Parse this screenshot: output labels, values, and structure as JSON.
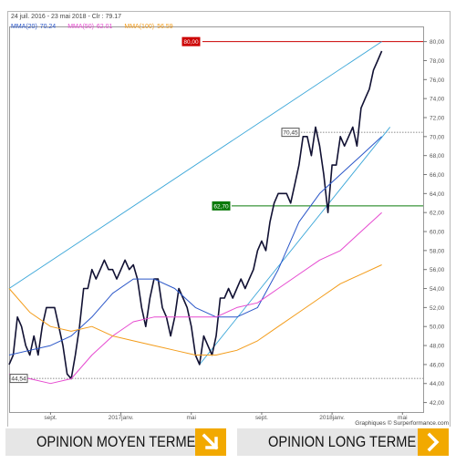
{
  "header": {
    "date_line": "24 juil. 2016 - 23 mai 2018 - Clr : 79.17",
    "mma": [
      {
        "label": "MMA(20)",
        "value": "70.24",
        "color": "#2a56c8"
      },
      {
        "label": "MMA(50)",
        "value": "62.01",
        "color": "#e64ad0"
      },
      {
        "label": "MMA(100)",
        "value": "56.59",
        "color": "#f39c1a"
      }
    ]
  },
  "credit": "Graphiques © Surperformance.com",
  "chart_data": {
    "type": "line",
    "ylim": [
      41,
      81.5
    ],
    "y_ticks": [
      "42,00",
      "44,00",
      "46,00",
      "48,00",
      "50,00",
      "52,00",
      "54,00",
      "56,00",
      "58,00",
      "60,00",
      "62,00",
      "64,00",
      "66,00",
      "68,00",
      "70,00",
      "72,00",
      "74,00",
      "76,00",
      "78,00",
      "80,00"
    ],
    "x_tick_labels": [
      "sept.",
      "2017janv.",
      "mai",
      "sept.",
      "2018janv.",
      "mai"
    ],
    "x_tick_positions": [
      10,
      27,
      44,
      61,
      78,
      95
    ],
    "level_labels": [
      {
        "text": "80,00",
        "value": 80.0,
        "color": "#cc0000"
      },
      {
        "text": "70,45",
        "value": 70.45,
        "color": "#555555"
      },
      {
        "text": "62,70",
        "value": 62.7,
        "color": "#0a7a0a"
      },
      {
        "text": "44,54",
        "value": 44.54,
        "color": "#555555"
      }
    ],
    "series": [
      {
        "color": "#111133",
        "points": [
          [
            0,
            46
          ],
          [
            1,
            47
          ],
          [
            2,
            51
          ],
          [
            3,
            50
          ],
          [
            4,
            48
          ],
          [
            5,
            47
          ],
          [
            6,
            49
          ],
          [
            7,
            47
          ],
          [
            8,
            50
          ],
          [
            9,
            52
          ],
          [
            10,
            52
          ],
          [
            11,
            52
          ],
          [
            12,
            50
          ],
          [
            13,
            48
          ],
          [
            14,
            45
          ],
          [
            15,
            44.5
          ],
          [
            16,
            47
          ],
          [
            17,
            50
          ],
          [
            18,
            54
          ],
          [
            19,
            54
          ],
          [
            20,
            56
          ],
          [
            21,
            55
          ],
          [
            22,
            56
          ],
          [
            23,
            57
          ],
          [
            24,
            56
          ],
          [
            25,
            56
          ],
          [
            26,
            55
          ],
          [
            27,
            56
          ],
          [
            28,
            57
          ],
          [
            29,
            56
          ],
          [
            30,
            56.5
          ],
          [
            31,
            55
          ],
          [
            32,
            52
          ],
          [
            33,
            50
          ],
          [
            34,
            53
          ],
          [
            35,
            55
          ],
          [
            36,
            55
          ],
          [
            37,
            52
          ],
          [
            38,
            51
          ],
          [
            39,
            49
          ],
          [
            40,
            51
          ],
          [
            41,
            54
          ],
          [
            42,
            53
          ],
          [
            43,
            52
          ],
          [
            44,
            50
          ],
          [
            45,
            47
          ],
          [
            46,
            46
          ],
          [
            47,
            49
          ],
          [
            48,
            48
          ],
          [
            49,
            47
          ],
          [
            50,
            49
          ],
          [
            51,
            53
          ],
          [
            52,
            53
          ],
          [
            53,
            54
          ],
          [
            54,
            53
          ],
          [
            55,
            54
          ],
          [
            56,
            55
          ],
          [
            57,
            54
          ],
          [
            58,
            55
          ],
          [
            59,
            56
          ],
          [
            60,
            58
          ],
          [
            61,
            59
          ],
          [
            62,
            58
          ],
          [
            63,
            61
          ],
          [
            64,
            63
          ],
          [
            65,
            64
          ],
          [
            66,
            64
          ],
          [
            67,
            64
          ],
          [
            68,
            63
          ],
          [
            69,
            65
          ],
          [
            70,
            67
          ],
          [
            71,
            70
          ],
          [
            72,
            70
          ],
          [
            73,
            68
          ],
          [
            74,
            71
          ],
          [
            75,
            69
          ],
          [
            76,
            66
          ],
          [
            77,
            62
          ],
          [
            78,
            67
          ],
          [
            79,
            67
          ],
          [
            80,
            70
          ],
          [
            81,
            69
          ],
          [
            82,
            70
          ],
          [
            83,
            71
          ],
          [
            84,
            69
          ],
          [
            85,
            73
          ],
          [
            86,
            74
          ],
          [
            87,
            75
          ],
          [
            88,
            77
          ],
          [
            89,
            78
          ],
          [
            90,
            79
          ]
        ]
      },
      {
        "name": "MMA(20)",
        "color": "#2a56c8",
        "points": [
          [
            0,
            47
          ],
          [
            5,
            47.5
          ],
          [
            10,
            48
          ],
          [
            15,
            49
          ],
          [
            20,
            51
          ],
          [
            25,
            53.5
          ],
          [
            30,
            55
          ],
          [
            35,
            55
          ],
          [
            40,
            54
          ],
          [
            45,
            52
          ],
          [
            50,
            51
          ],
          [
            55,
            51
          ],
          [
            60,
            52
          ],
          [
            65,
            56
          ],
          [
            70,
            61
          ],
          [
            75,
            64
          ],
          [
            80,
            66
          ],
          [
            85,
            68
          ],
          [
            90,
            70
          ]
        ]
      },
      {
        "name": "MMA(50)",
        "color": "#e64ad0",
        "points": [
          [
            0,
            45
          ],
          [
            5,
            44.5
          ],
          [
            10,
            44
          ],
          [
            15,
            44.5
          ],
          [
            20,
            47
          ],
          [
            25,
            49
          ],
          [
            30,
            50.5
          ],
          [
            35,
            51
          ],
          [
            40,
            51
          ],
          [
            45,
            51
          ],
          [
            50,
            51
          ],
          [
            55,
            52
          ],
          [
            60,
            52.5
          ],
          [
            65,
            54
          ],
          [
            70,
            55.5
          ],
          [
            75,
            57
          ],
          [
            80,
            58
          ],
          [
            85,
            60
          ],
          [
            90,
            62
          ]
        ]
      },
      {
        "name": "MMA(100)",
        "color": "#f39c1a",
        "points": [
          [
            0,
            54
          ],
          [
            5,
            51.5
          ],
          [
            10,
            50
          ],
          [
            15,
            49.5
          ],
          [
            20,
            50
          ],
          [
            25,
            49
          ],
          [
            30,
            48.5
          ],
          [
            35,
            48
          ],
          [
            40,
            47.5
          ],
          [
            45,
            47
          ],
          [
            50,
            47
          ],
          [
            55,
            47.5
          ],
          [
            60,
            48.5
          ],
          [
            65,
            50
          ],
          [
            70,
            51.5
          ],
          [
            75,
            53
          ],
          [
            80,
            54.5
          ],
          [
            85,
            55.5
          ],
          [
            90,
            56.5
          ]
        ]
      }
    ],
    "trendlines": [
      {
        "color": "#3aa6d8",
        "from": [
          0,
          54
        ],
        "to": [
          90,
          80
        ]
      },
      {
        "color": "#3aa6d8",
        "from": [
          46,
          46
        ],
        "to": [
          92,
          71
        ]
      }
    ]
  },
  "footer": {
    "medium_term_label": "OPINION MOYEN TERME",
    "long_term_label": "OPINION LONG TERME"
  }
}
